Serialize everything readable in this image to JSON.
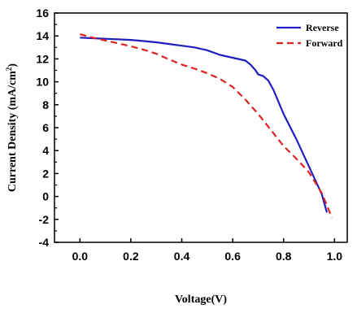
{
  "chart_data": {
    "type": "line",
    "title": "",
    "xlabel": "Voltage(V)",
    "ylabel_main": "Current Density (mA/cm",
    "ylabel_sup": "2",
    "ylabel_close": ")",
    "xlim": [
      -0.1,
      1.05
    ],
    "ylim": [
      -4,
      16
    ],
    "x_ticks": [
      0.0,
      0.2,
      0.4,
      0.6,
      0.8,
      1.0
    ],
    "x_tick_labels": [
      "0.0",
      "0.2",
      "0.4",
      "0.6",
      "0.8",
      "1.0"
    ],
    "y_ticks": [
      -4,
      -2,
      0,
      2,
      4,
      6,
      8,
      10,
      12,
      14,
      16
    ],
    "y_tick_labels": [
      "-4",
      "-2",
      "0",
      "2",
      "4",
      "6",
      "8",
      "10",
      "12",
      "14",
      "16"
    ],
    "grid": false,
    "legend_position": "top-right",
    "series": [
      {
        "name": "Reverse",
        "color": "#1f1fbf",
        "dash": "solid",
        "x": [
          0.0,
          0.05,
          0.1,
          0.15,
          0.2,
          0.25,
          0.3,
          0.35,
          0.4,
          0.45,
          0.5,
          0.55,
          0.6,
          0.65,
          0.67,
          0.69,
          0.7,
          0.72,
          0.74,
          0.76,
          0.8,
          0.85,
          0.9,
          0.95,
          0.97
        ],
        "y": [
          13.85,
          13.8,
          13.75,
          13.7,
          13.65,
          13.55,
          13.45,
          13.3,
          13.15,
          13.0,
          12.75,
          12.35,
          12.1,
          11.85,
          11.5,
          11.0,
          10.65,
          10.5,
          10.1,
          9.3,
          7.2,
          5.0,
          2.6,
          0.2,
          -1.4
        ]
      },
      {
        "name": "Forward",
        "color": "#dd2222",
        "dash": "dashed",
        "x": [
          0.0,
          0.05,
          0.1,
          0.15,
          0.2,
          0.25,
          0.3,
          0.35,
          0.4,
          0.45,
          0.5,
          0.55,
          0.6,
          0.65,
          0.7,
          0.75,
          0.8,
          0.85,
          0.9,
          0.95,
          0.99
        ],
        "y": [
          14.15,
          13.85,
          13.6,
          13.35,
          13.1,
          12.8,
          12.45,
          11.95,
          11.5,
          11.15,
          10.75,
          10.25,
          9.55,
          8.45,
          7.2,
          5.8,
          4.4,
          3.3,
          2.1,
          0.3,
          -1.85
        ]
      }
    ]
  }
}
